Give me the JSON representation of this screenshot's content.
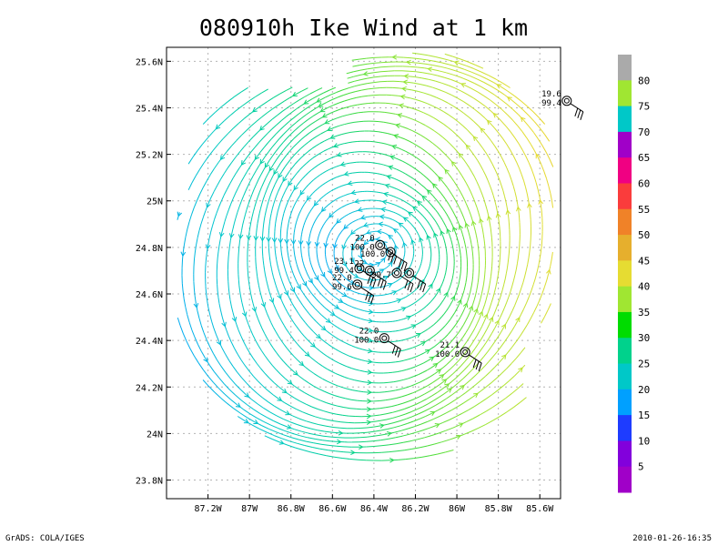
{
  "chart_data": {
    "type": "streamline-wind",
    "title": "080910h Ike Wind at 1 km",
    "x_ticks": [
      "87.2W",
      "87W",
      "86.8W",
      "86.6W",
      "86.4W",
      "86.2W",
      "86W",
      "85.8W",
      "85.6W"
    ],
    "x_tick_values": [
      -87.2,
      -87.0,
      -86.8,
      -86.6,
      -86.4,
      -86.2,
      -86.0,
      -85.8,
      -85.6
    ],
    "y_ticks": [
      "23.8N",
      "24N",
      "24.2N",
      "24.4N",
      "24.6N",
      "24.8N",
      "25N",
      "25.2N",
      "25.4N",
      "25.6N"
    ],
    "y_tick_values": [
      23.8,
      24.0,
      24.2,
      24.4,
      24.6,
      24.8,
      25.0,
      25.2,
      25.4,
      25.6
    ],
    "xlim": [
      -87.4,
      -85.5
    ],
    "ylim": [
      23.72,
      25.66
    ],
    "grid": true,
    "vortex_center": [
      -86.4,
      24.78
    ],
    "colorbar": {
      "labels": [
        "5",
        "10",
        "15",
        "20",
        "25",
        "30",
        "35",
        "40",
        "45",
        "50",
        "55",
        "60",
        "65",
        "70",
        "75",
        "80"
      ],
      "colors": [
        "#a000c8",
        "#8200dc",
        "#1e3cff",
        "#00a0ff",
        "#00c8c8",
        "#00d28c",
        "#00dc00",
        "#a0e632",
        "#e6dc32",
        "#e6af2d",
        "#f08228",
        "#fa3c3c",
        "#f00082",
        "#a000c8",
        "#00c8c8",
        "#a0e632",
        "#aaaaaa"
      ]
    },
    "annotations": [
      {
        "lon": -86.37,
        "lat": 24.81,
        "line1": "22.0",
        "line2": "100.0"
      },
      {
        "lon": -86.32,
        "lat": 24.78,
        "line1": "",
        "line2": "100.0"
      },
      {
        "lon": -86.47,
        "lat": 24.71,
        "line1": "23.1",
        "line2": "99.4"
      },
      {
        "lon": -86.42,
        "lat": 24.7,
        "line1": "22",
        "line2": ""
      },
      {
        "lon": -86.29,
        "lat": 24.69,
        "line1": "",
        "line2": "99.7"
      },
      {
        "lon": -86.23,
        "lat": 24.69,
        "line1": "",
        "line2": ""
      },
      {
        "lon": -86.48,
        "lat": 24.64,
        "line1": "22.0",
        "line2": "99.6"
      },
      {
        "lon": -86.35,
        "lat": 24.41,
        "line1": "22.0",
        "line2": "100.0"
      },
      {
        "lon": -85.96,
        "lat": 24.35,
        "line1": "21.1",
        "line2": "100.0"
      },
      {
        "lon": -85.47,
        "lat": 25.43,
        "line1": "19.6",
        "line2": "99.4"
      }
    ]
  },
  "footer": {
    "left": "GrADS: COLA/IGES",
    "right": "2010-01-26-16:35"
  }
}
